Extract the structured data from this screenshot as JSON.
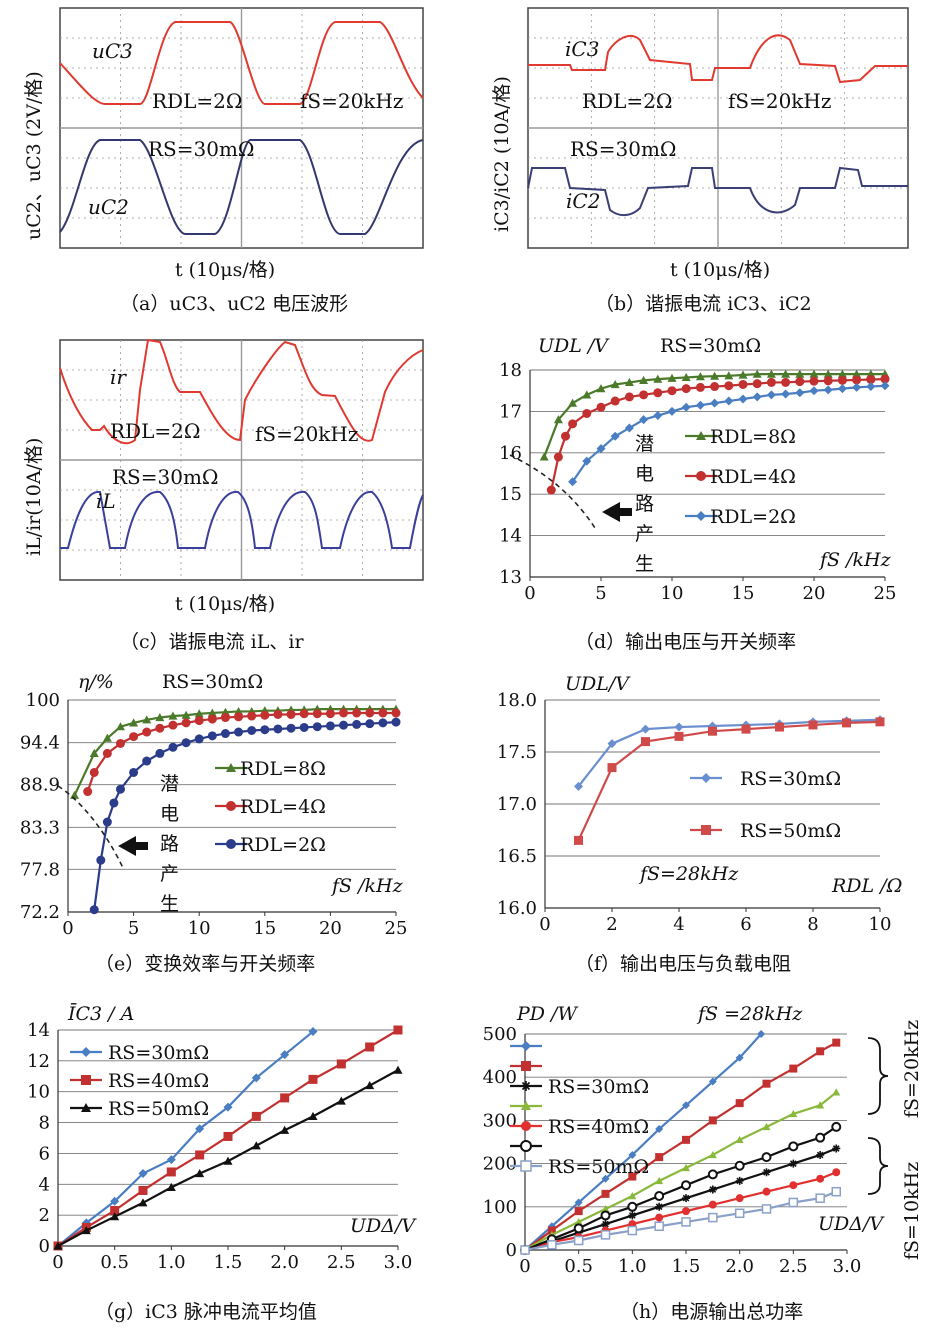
{
  "panels": {
    "a": {
      "caption": "（a）uC3、uC2 电压波形",
      "ylabel": "uC2、uC3 (2V/格)",
      "xlabel": "t (10μs/格)",
      "annotations": [
        "uC3",
        "RDL=2Ω",
        "fS=20kHz",
        "RS=30mΩ",
        "uC2"
      ]
    },
    "b": {
      "caption": "（b）谐振电流 iC3、iC2",
      "ylabel": "iC3/iC2 (10A/格)",
      "xlabel": "t (10μs/格)",
      "annotations": [
        "iC3",
        "RDL=2Ω",
        "fS=20kHz",
        "RS=30mΩ",
        "iC2"
      ]
    },
    "c": {
      "caption": "（c）谐振电流 iL、ir",
      "ylabel": "iL/ir(10A/格)",
      "xlabel": "t (10μs/格)",
      "annotations": [
        "ir",
        "RDL=2Ω",
        "fS=20kHz",
        "RS=30mΩ",
        "iL"
      ]
    },
    "d": {
      "caption": "（d）输出电压与开关频率",
      "note": "潜电路产生"
    },
    "e": {
      "caption": "（e）变换效率与开关频率",
      "note": "潜电路产生"
    },
    "f": {
      "caption": "（f）输出电压与负载电阻"
    },
    "g": {
      "caption": "（g）iC3 脉冲电流平均值"
    },
    "h": {
      "caption": "（h）电源输出总功率",
      "bracket1": "fS=20kHz",
      "bracket2": "fS=10kHz"
    }
  },
  "chart_data": [
    {
      "id": "d",
      "type": "line",
      "title": "RS=30mΩ",
      "ylabel": "UDL /V",
      "xlabel": "fS /kHz",
      "xlim": [
        0,
        25
      ],
      "ylim": [
        13,
        18
      ],
      "xticks": [
        0,
        5,
        10,
        15,
        20,
        25
      ],
      "yticks": [
        13,
        14,
        15,
        16,
        17,
        18
      ],
      "legend": "right",
      "series": [
        {
          "name": "RDL=8Ω",
          "color": "#4a7a2a",
          "marker": "triangle",
          "x": [
            1,
            2,
            3,
            4,
            5,
            6,
            7,
            8,
            9,
            10,
            11,
            12,
            13,
            14,
            15,
            16,
            17,
            18,
            19,
            20,
            21,
            22,
            23,
            24,
            25
          ],
          "y": [
            15.9,
            16.8,
            17.2,
            17.4,
            17.55,
            17.65,
            17.7,
            17.75,
            17.78,
            17.8,
            17.82,
            17.84,
            17.85,
            17.86,
            17.88,
            17.9,
            17.9,
            17.9,
            17.9,
            17.9,
            17.9,
            17.9,
            17.9,
            17.9,
            17.9
          ]
        },
        {
          "name": "RDL=4Ω",
          "color": "#c23030",
          "marker": "circle",
          "x": [
            1.5,
            2,
            2.5,
            3,
            4,
            5,
            6,
            7,
            8,
            9,
            10,
            11,
            12,
            13,
            14,
            15,
            16,
            17,
            18,
            19,
            20,
            21,
            22,
            23,
            24,
            25
          ],
          "y": [
            15.1,
            15.9,
            16.4,
            16.7,
            16.95,
            17.1,
            17.25,
            17.35,
            17.4,
            17.45,
            17.5,
            17.55,
            17.58,
            17.6,
            17.62,
            17.65,
            17.67,
            17.7,
            17.7,
            17.72,
            17.73,
            17.74,
            17.75,
            17.76,
            17.77,
            17.78
          ]
        },
        {
          "name": "RDL=2Ω",
          "color": "#4a7ec2",
          "marker": "diamond",
          "x": [
            3,
            4,
            5,
            6,
            7,
            8,
            9,
            10,
            11,
            12,
            13,
            14,
            15,
            16,
            17,
            18,
            19,
            20,
            21,
            22,
            23,
            24,
            25
          ],
          "y": [
            15.3,
            15.8,
            16.1,
            16.4,
            16.6,
            16.8,
            16.9,
            17.0,
            17.1,
            17.15,
            17.2,
            17.25,
            17.3,
            17.35,
            17.4,
            17.42,
            17.45,
            17.5,
            17.52,
            17.55,
            17.58,
            17.6,
            17.62
          ]
        }
      ]
    },
    {
      "id": "e",
      "type": "line",
      "title": "RS=30mΩ",
      "ylabel": "η/%",
      "xlabel": "fS /kHz",
      "xlim": [
        0,
        25
      ],
      "ylim": [
        72.2,
        100
      ],
      "xticks": [
        0,
        5,
        10,
        15,
        20,
        25
      ],
      "yticks": [
        72.2,
        77.8,
        83.3,
        88.9,
        94.4,
        100
      ],
      "legend": "right",
      "series": [
        {
          "name": "RDL=8Ω",
          "color": "#4a7a2a",
          "marker": "triangle",
          "x": [
            0.5,
            2,
            3,
            4,
            5,
            6,
            7,
            8,
            9,
            10,
            11,
            12,
            13,
            14,
            15,
            16,
            17,
            18,
            19,
            20,
            21,
            22,
            23,
            24,
            25
          ],
          "y": [
            87.5,
            93,
            95,
            96.5,
            97,
            97.4,
            97.7,
            97.9,
            98,
            98.2,
            98.3,
            98.4,
            98.5,
            98.5,
            98.6,
            98.6,
            98.7,
            98.7,
            98.8,
            98.8,
            98.8,
            98.8,
            98.8,
            98.8,
            98.8
          ]
        },
        {
          "name": "RDL=4Ω",
          "color": "#c23030",
          "marker": "circle",
          "x": [
            1.5,
            2,
            3,
            4,
            5,
            6,
            7,
            8,
            9,
            10,
            11,
            12,
            13,
            14,
            15,
            16,
            17,
            18,
            19,
            20,
            21,
            22,
            23,
            24,
            25
          ],
          "y": [
            88,
            90.5,
            93,
            94.3,
            95.2,
            95.8,
            96.3,
            96.7,
            97,
            97.3,
            97.5,
            97.7,
            97.8,
            97.9,
            98,
            98.1,
            98.1,
            98.2,
            98.2,
            98.2,
            98.3,
            98.3,
            98.3,
            98.3,
            98.3
          ]
        },
        {
          "name": "RDL=2Ω",
          "color": "#2b3c8a",
          "marker": "circle",
          "x": [
            2,
            2.5,
            3,
            3.5,
            4,
            5,
            6,
            7,
            8,
            9,
            10,
            11,
            12,
            13,
            14,
            15,
            16,
            17,
            18,
            19,
            20,
            21,
            22,
            23,
            24,
            25
          ],
          "y": [
            72.5,
            79,
            84,
            86.5,
            88.3,
            90.5,
            92,
            93,
            93.8,
            94.4,
            94.9,
            95.3,
            95.6,
            95.8,
            96,
            96.1,
            96.2,
            96.3,
            96.4,
            96.5,
            96.6,
            96.7,
            96.8,
            96.9,
            97,
            97.1
          ]
        }
      ]
    },
    {
      "id": "f",
      "type": "line",
      "ylabel": "UDL/V",
      "xlabel": "RDL /Ω",
      "annotation": "fS=28kHz",
      "xlim": [
        0,
        10
      ],
      "ylim": [
        16.0,
        18.0
      ],
      "xticks": [
        0,
        2,
        4,
        6,
        8,
        10
      ],
      "yticks": [
        "16.0",
        "16.5",
        "17.0",
        "17.5",
        "18.0"
      ],
      "legend": "right",
      "series": [
        {
          "name": "RS=30mΩ",
          "color": "#6a8fd0",
          "marker": "diamond",
          "x": [
            1,
            2,
            3,
            4,
            5,
            6,
            7,
            8,
            9,
            10
          ],
          "y": [
            17.17,
            17.58,
            17.72,
            17.74,
            17.75,
            17.76,
            17.77,
            17.79,
            17.8,
            17.81
          ]
        },
        {
          "name": "RS=50mΩ",
          "color": "#d04a4a",
          "marker": "square",
          "x": [
            1,
            2,
            3,
            4,
            5,
            6,
            7,
            8,
            9,
            10
          ],
          "y": [
            16.65,
            17.35,
            17.6,
            17.65,
            17.7,
            17.72,
            17.74,
            17.76,
            17.78,
            17.79
          ]
        }
      ]
    },
    {
      "id": "g",
      "type": "line",
      "ylabel": "ĪC3 / A",
      "xlabel": "UDΔ/V",
      "xlim": [
        0,
        3.0
      ],
      "ylim": [
        0,
        14
      ],
      "xticks": [
        "0",
        "0.5",
        "1.0",
        "1.5",
        "2.0",
        "2.5",
        "3.0"
      ],
      "yticks": [
        0,
        2,
        4,
        6,
        8,
        10,
        12,
        14
      ],
      "legend": "top-left",
      "series": [
        {
          "name": "RS=30mΩ",
          "color": "#4a7ec2",
          "marker": "diamond",
          "x": [
            0,
            0.25,
            0.5,
            0.75,
            1.0,
            1.25,
            1.5,
            1.75,
            2.0,
            2.25
          ],
          "y": [
            0,
            1.5,
            2.9,
            4.7,
            5.6,
            7.6,
            9.0,
            10.9,
            12.4,
            13.9
          ]
        },
        {
          "name": "RS=40mΩ",
          "color": "#c23030",
          "marker": "square",
          "x": [
            0,
            0.25,
            0.5,
            0.75,
            1.0,
            1.25,
            1.5,
            1.75,
            2.0,
            2.25,
            2.5,
            2.75,
            3.0
          ],
          "y": [
            0,
            1.2,
            2.3,
            3.6,
            4.8,
            5.9,
            7.1,
            8.4,
            9.6,
            10.8,
            11.8,
            12.9,
            14.0
          ]
        },
        {
          "name": "RS=50mΩ",
          "color": "#111111",
          "marker": "triangle",
          "x": [
            0,
            0.25,
            0.5,
            0.75,
            1.0,
            1.25,
            1.5,
            1.75,
            2.0,
            2.25,
            2.5,
            2.75,
            3.0
          ],
          "y": [
            0,
            1.0,
            1.9,
            2.8,
            3.8,
            4.7,
            5.5,
            6.5,
            7.5,
            8.4,
            9.4,
            10.4,
            11.4
          ]
        }
      ]
    },
    {
      "id": "h",
      "type": "line",
      "ylabel": "PD /W",
      "xlabel": "UDΔ/V",
      "annotation": "fS =28kHz",
      "xlim": [
        0,
        3.0
      ],
      "ylim": [
        0,
        500
      ],
      "xticks": [
        "0",
        "0.5",
        "1.0",
        "1.5",
        "2.0",
        "2.5",
        "3.0"
      ],
      "yticks": [
        0,
        100,
        200,
        300,
        400,
        500
      ],
      "legend": "top-left",
      "series": [
        {
          "color": "#4a7ec2",
          "marker": "diamond",
          "x": [
            0,
            0.25,
            0.5,
            0.75,
            1.0,
            1.25,
            1.5,
            1.75,
            2.0,
            2.2
          ],
          "y": [
            0,
            55,
            110,
            165,
            220,
            280,
            335,
            390,
            445,
            500
          ]
        },
        {
          "color": "#c23030",
          "marker": "square",
          "x": [
            0,
            0.25,
            0.5,
            0.75,
            1.0,
            1.25,
            1.5,
            1.75,
            2.0,
            2.25,
            2.5,
            2.75,
            2.9
          ],
          "y": [
            0,
            45,
            90,
            130,
            170,
            215,
            255,
            300,
            340,
            385,
            420,
            460,
            480
          ]
        },
        {
          "name": "RS=30mΩ",
          "color": "#111111",
          "marker": "star",
          "x": [
            0,
            0.25,
            0.5,
            0.75,
            1.0,
            1.25,
            1.5,
            1.75,
            2.0,
            2.25,
            2.5,
            2.75,
            2.9
          ],
          "y": [
            0,
            20,
            40,
            60,
            80,
            100,
            120,
            140,
            160,
            180,
            200,
            220,
            235
          ]
        },
        {
          "color": "#8ab83a",
          "marker": "triangle",
          "x": [
            0,
            0.25,
            0.5,
            0.75,
            1.0,
            1.25,
            1.5,
            1.75,
            2.0,
            2.25,
            2.5,
            2.75,
            2.9
          ],
          "y": [
            0,
            35,
            65,
            95,
            125,
            160,
            190,
            220,
            255,
            285,
            315,
            335,
            365
          ]
        },
        {
          "name": "RS=40mΩ",
          "color": "#e03030",
          "marker": "circle",
          "x": [
            0,
            0.25,
            0.5,
            0.75,
            1.0,
            1.25,
            1.5,
            1.75,
            2.0,
            2.25,
            2.5,
            2.75,
            2.9
          ],
          "y": [
            0,
            18,
            30,
            45,
            60,
            75,
            90,
            105,
            120,
            135,
            150,
            165,
            180
          ]
        },
        {
          "color": "#111111",
          "marker": "ring",
          "x": [
            0,
            0.25,
            0.5,
            0.75,
            1.0,
            1.25,
            1.5,
            1.75,
            2.0,
            2.25,
            2.5,
            2.75,
            2.9
          ],
          "y": [
            0,
            25,
            50,
            80,
            100,
            125,
            150,
            175,
            195,
            215,
            240,
            260,
            285
          ]
        },
        {
          "name": "RS=50mΩ",
          "color": "#8aa0c8",
          "marker": "square-open",
          "x": [
            0,
            0.25,
            0.5,
            0.75,
            1.0,
            1.25,
            1.5,
            1.75,
            2.0,
            2.25,
            2.5,
            2.75,
            2.9
          ],
          "y": [
            0,
            12,
            22,
            35,
            45,
            55,
            65,
            75,
            85,
            95,
            110,
            120,
            135
          ]
        }
      ]
    }
  ]
}
